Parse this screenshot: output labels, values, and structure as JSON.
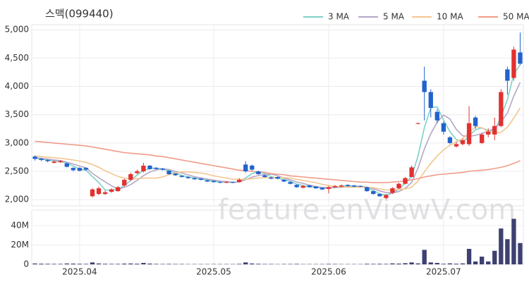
{
  "chart_data": {
    "type": "candlestick",
    "title": "스맥(099440)",
    "watermark": "feature.enViewV.com",
    "up_color": "#e2312f",
    "down_color": "#2163cb",
    "categories": [
      null,
      null,
      null,
      null,
      null,
      null,
      null,
      "2025.04",
      null,
      null,
      null,
      null,
      null,
      null,
      null,
      null,
      null,
      null,
      null,
      null,
      null,
      null,
      null,
      null,
      null,
      null,
      null,
      null,
      "2025.05",
      null,
      null,
      null,
      null,
      null,
      null,
      null,
      null,
      null,
      null,
      null,
      null,
      null,
      null,
      null,
      null,
      null,
      "2025.06",
      null,
      null,
      null,
      null,
      null,
      null,
      null,
      null,
      null,
      null,
      null,
      null,
      null,
      null,
      null,
      null,
      null,
      "2025.07",
      null,
      null,
      null,
      null,
      null,
      null,
      null,
      null,
      null,
      null,
      null,
      null
    ],
    "open": [
      2760,
      2720,
      2700,
      2650,
      2660,
      2640,
      2560,
      2560,
      2560,
      2060,
      2100,
      2100,
      2140,
      2150,
      2250,
      2350,
      2470,
      2500,
      2600,
      2560,
      2550,
      2510,
      2460,
      2420,
      2400,
      2380,
      2370,
      2340,
      2330,
      2310,
      2300,
      2310,
      2310,
      2620,
      2600,
      2500,
      2430,
      2390,
      2400,
      2350,
      2310,
      2260,
      2210,
      2250,
      2230,
      2210,
      2190,
      2220,
      2230,
      2260,
      2250,
      2240,
      2220,
      2150,
      2100,
      2030,
      2120,
      2200,
      2280,
      2400,
      3340,
      4100,
      3900,
      3550,
      3350,
      3100,
      2940,
      2980,
      2980,
      3450,
      3000,
      3150,
      3150,
      3300,
      4300,
      4150,
      4600
    ],
    "high": [
      2780,
      2740,
      2710,
      2690,
      2700,
      2650,
      2570,
      2570,
      2570,
      2200,
      2230,
      2160,
      2200,
      2240,
      2370,
      2480,
      2530,
      2650,
      2610,
      2570,
      2560,
      2520,
      2470,
      2430,
      2410,
      2390,
      2380,
      2350,
      2340,
      2320,
      2330,
      2320,
      2380,
      2680,
      2620,
      2510,
      2440,
      2400,
      2410,
      2360,
      2320,
      2270,
      2260,
      2260,
      2240,
      2220,
      2240,
      2260,
      2270,
      2270,
      2260,
      2250,
      2230,
      2160,
      2110,
      2100,
      2220,
      2300,
      2400,
      2600,
      3360,
      4350,
      3950,
      3600,
      3380,
      3120,
      3020,
      3080,
      3650,
      3480,
      3180,
      3260,
      3450,
      3950,
      4350,
      4700,
      4950
    ],
    "low": [
      2690,
      2680,
      2660,
      2640,
      2650,
      2570,
      2500,
      2500,
      2510,
      2040,
      2080,
      2080,
      2120,
      2140,
      2230,
      2330,
      2450,
      2480,
      2530,
      2530,
      2510,
      2440,
      2420,
      2390,
      2370,
      2350,
      2340,
      2310,
      2300,
      2290,
      2290,
      2290,
      2300,
      2480,
      2510,
      2440,
      2390,
      2360,
      2360,
      2310,
      2270,
      2210,
      2200,
      2210,
      2190,
      2170,
      2110,
      2210,
      2220,
      2230,
      2220,
      2220,
      2140,
      2090,
      2050,
      2010,
      2100,
      2190,
      2270,
      2390,
      3330,
      3400,
      3450,
      3350,
      3150,
      2980,
      2920,
      2960,
      2950,
      3250,
      2980,
      3100,
      3050,
      3280,
      3850,
      4100,
      4380
    ],
    "close": [
      2720,
      2700,
      2680,
      2670,
      2680,
      2580,
      2520,
      2510,
      2530,
      2180,
      2200,
      2130,
      2180,
      2220,
      2350,
      2450,
      2500,
      2600,
      2540,
      2540,
      2530,
      2450,
      2430,
      2400,
      2380,
      2360,
      2350,
      2320,
      2310,
      2300,
      2310,
      2300,
      2350,
      2500,
      2530,
      2450,
      2400,
      2370,
      2370,
      2320,
      2280,
      2220,
      2240,
      2220,
      2200,
      2180,
      2220,
      2240,
      2250,
      2240,
      2230,
      2230,
      2150,
      2100,
      2060,
      2080,
      2200,
      2280,
      2380,
      2570,
      3350,
      3900,
      3620,
      3400,
      3200,
      3000,
      2980,
      3050,
      3350,
      3300,
      3150,
      3200,
      3300,
      3900,
      4100,
      4650,
      4400
    ],
    "ylim": [
      1890,
      5090
    ],
    "yticks": [
      {
        "value": 2000,
        "label": "2,000"
      },
      {
        "value": 2500,
        "label": "2,500"
      },
      {
        "value": 3000,
        "label": "3,000"
      },
      {
        "value": 3500,
        "label": "3,500"
      },
      {
        "value": 4000,
        "label": "4,000"
      },
      {
        "value": 4500,
        "label": "4,500"
      },
      {
        "value": 5000,
        "label": "5,000"
      }
    ],
    "grid": true,
    "series": [
      {
        "name": "3 MA",
        "color": "#7fd0c9",
        "values": [
          2730,
          2715,
          2700,
          2683,
          2677,
          2643,
          2593,
          2537,
          2520,
          2407,
          2303,
          2170,
          2170,
          2177,
          2250,
          2340,
          2433,
          2517,
          2547,
          2560,
          2537,
          2507,
          2470,
          2427,
          2403,
          2380,
          2363,
          2343,
          2327,
          2310,
          2307,
          2303,
          2320,
          2383,
          2460,
          2493,
          2460,
          2407,
          2380,
          2353,
          2323,
          2273,
          2247,
          2227,
          2220,
          2200,
          2200,
          2213,
          2237,
          2243,
          2240,
          2233,
          2203,
          2160,
          2103,
          2080,
          2113,
          2187,
          2287,
          2410,
          2767,
          3273,
          3623,
          3640,
          3407,
          3200,
          3060,
          3010,
          3127,
          3233,
          3267,
          3217,
          3217,
          3467,
          3767,
          4217,
          4383
        ]
      },
      {
        "name": "5 MA",
        "color": "#b5a6c8",
        "values": [
          2740,
          2730,
          2715,
          2700,
          2690,
          2662,
          2630,
          2592,
          2564,
          2464,
          2388,
          2314,
          2244,
          2182,
          2216,
          2266,
          2340,
          2424,
          2488,
          2526,
          2542,
          2532,
          2498,
          2470,
          2438,
          2404,
          2384,
          2362,
          2344,
          2328,
          2318,
          2308,
          2314,
          2352,
          2398,
          2426,
          2446,
          2450,
          2424,
          2382,
          2348,
          2312,
          2286,
          2256,
          2232,
          2212,
          2212,
          2212,
          2218,
          2226,
          2236,
          2238,
          2220,
          2190,
          2154,
          2124,
          2118,
          2144,
          2200,
          2302,
          2556,
          2896,
          3164,
          3368,
          3494,
          3424,
          3240,
          3126,
          3116,
          3136,
          3166,
          3210,
          3260,
          3370,
          3530,
          3830,
          4070
        ]
      },
      {
        "name": "10 MA",
        "color": "#f3c68f",
        "values": [
          2770,
          2760,
          2750,
          2740,
          2730,
          2715,
          2700,
          2680,
          2660,
          2620,
          2570,
          2510,
          2460,
          2410,
          2380,
          2370,
          2370,
          2380,
          2380,
          2380,
          2400,
          2440,
          2470,
          2490,
          2490,
          2480,
          2470,
          2450,
          2420,
          2400,
          2380,
          2360,
          2360,
          2360,
          2370,
          2380,
          2390,
          2390,
          2390,
          2390,
          2380,
          2360,
          2340,
          2320,
          2300,
          2270,
          2250,
          2230,
          2230,
          2220,
          2220,
          2220,
          2220,
          2210,
          2190,
          2170,
          2170,
          2180,
          2190,
          2220,
          2330,
          2490,
          2640,
          2770,
          2880,
          2960,
          3020,
          3080,
          3180,
          3290,
          3270,
          3200,
          3170,
          3190,
          3280,
          3440,
          3620
        ]
      },
      {
        "name": "50 MA",
        "color": "#f09c88",
        "values": [
          3030,
          3020,
          3010,
          3000,
          2990,
          2980,
          2970,
          2960,
          2950,
          2930,
          2910,
          2890,
          2870,
          2850,
          2830,
          2820,
          2810,
          2800,
          2790,
          2770,
          2760,
          2740,
          2720,
          2700,
          2680,
          2660,
          2640,
          2620,
          2600,
          2580,
          2560,
          2540,
          2520,
          2510,
          2500,
          2490,
          2480,
          2460,
          2450,
          2440,
          2420,
          2410,
          2400,
          2390,
          2380,
          2370,
          2360,
          2350,
          2340,
          2330,
          2320,
          2310,
          2310,
          2300,
          2300,
          2300,
          2310,
          2320,
          2330,
          2350,
          2370,
          2400,
          2420,
          2440,
          2450,
          2460,
          2470,
          2480,
          2500,
          2510,
          2520,
          2530,
          2550,
          2570,
          2600,
          2640,
          2690
        ]
      }
    ],
    "volume": {
      "color": "#3e4070",
      "values": [
        900000,
        700000,
        600000,
        500000,
        500000,
        900000,
        800000,
        600000,
        500000,
        2000000,
        900000,
        600000,
        500000,
        500000,
        800000,
        900000,
        700000,
        1500000,
        800000,
        500000,
        400000,
        500000,
        400000,
        400000,
        300000,
        300000,
        300000,
        300000,
        300000,
        300000,
        300000,
        300000,
        500000,
        2000000,
        900000,
        600000,
        400000,
        400000,
        300000,
        400000,
        400000,
        500000,
        300000,
        300000,
        300000,
        300000,
        500000,
        400000,
        300000,
        300000,
        300000,
        300000,
        600000,
        500000,
        600000,
        500000,
        1000000,
        800000,
        1200000,
        2000000,
        1000000,
        15000000,
        2000000,
        1500000,
        600000,
        1000000,
        700000,
        1000000,
        16000000,
        3000000,
        8000000,
        3000000,
        14000000,
        37000000,
        26000000,
        47000000,
        22000000
      ],
      "ylim": [
        0,
        56000000
      ],
      "yticks": [
        0,
        {
          "value": 20000000,
          "label": "20M"
        },
        {
          "value": 40000000,
          "label": "40M"
        }
      ]
    }
  }
}
